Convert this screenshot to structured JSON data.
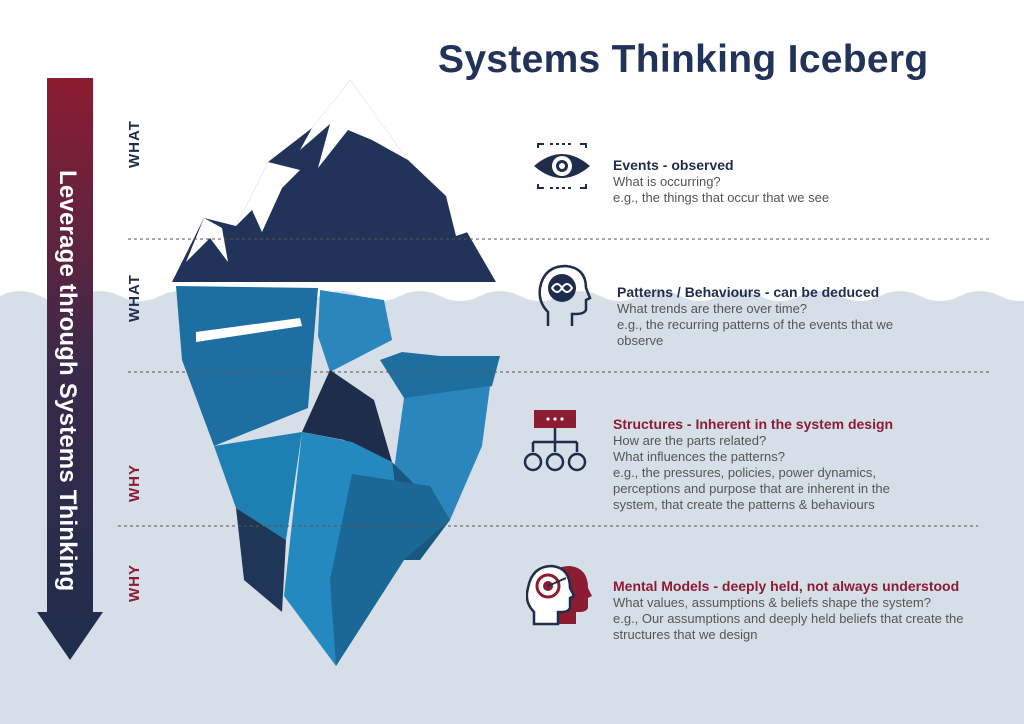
{
  "title": "Systems Thinking Iceberg",
  "leverage_label": "Leverage through Systems Thinking",
  "side_labels": [
    "WHAT",
    "WHAT",
    "WHY",
    "WHY"
  ],
  "levels": [
    {
      "heading": "Events - observed",
      "lines": [
        "What is occurring?",
        "e.g., the things that occur that we see"
      ],
      "icon": "eye-icon"
    },
    {
      "heading": "Patterns / Behaviours - can be deduced",
      "lines": [
        "What trends are there over time?",
        "e.g., the recurring patterns of the events that we",
        "observe"
      ],
      "icon": "head-loop-icon"
    },
    {
      "heading": "Structures - Inherent in the system design",
      "lines": [
        "How are the parts related?",
        "What influences the patterns?",
        "e.g., the pressures, policies, power dynamics,",
        "perceptions and purpose that are inherent in the",
        "system, that create the patterns & behaviours"
      ],
      "icon": "hierarchy-icon"
    },
    {
      "heading": "Mental Models - deeply held, not always understood",
      "lines": [
        "What values, assumptions & beliefs shape the system?",
        "e.g., Our assumptions and deeply held beliefs that create the",
        "structures that we design"
      ],
      "icon": "heads-target-icon"
    }
  ],
  "colors": {
    "navy": "#1f2d4c",
    "maroon": "#8c1c32",
    "water": "#d6dfe8",
    "ice_blue": "#1d7fb0",
    "text_gray": "#555555"
  }
}
